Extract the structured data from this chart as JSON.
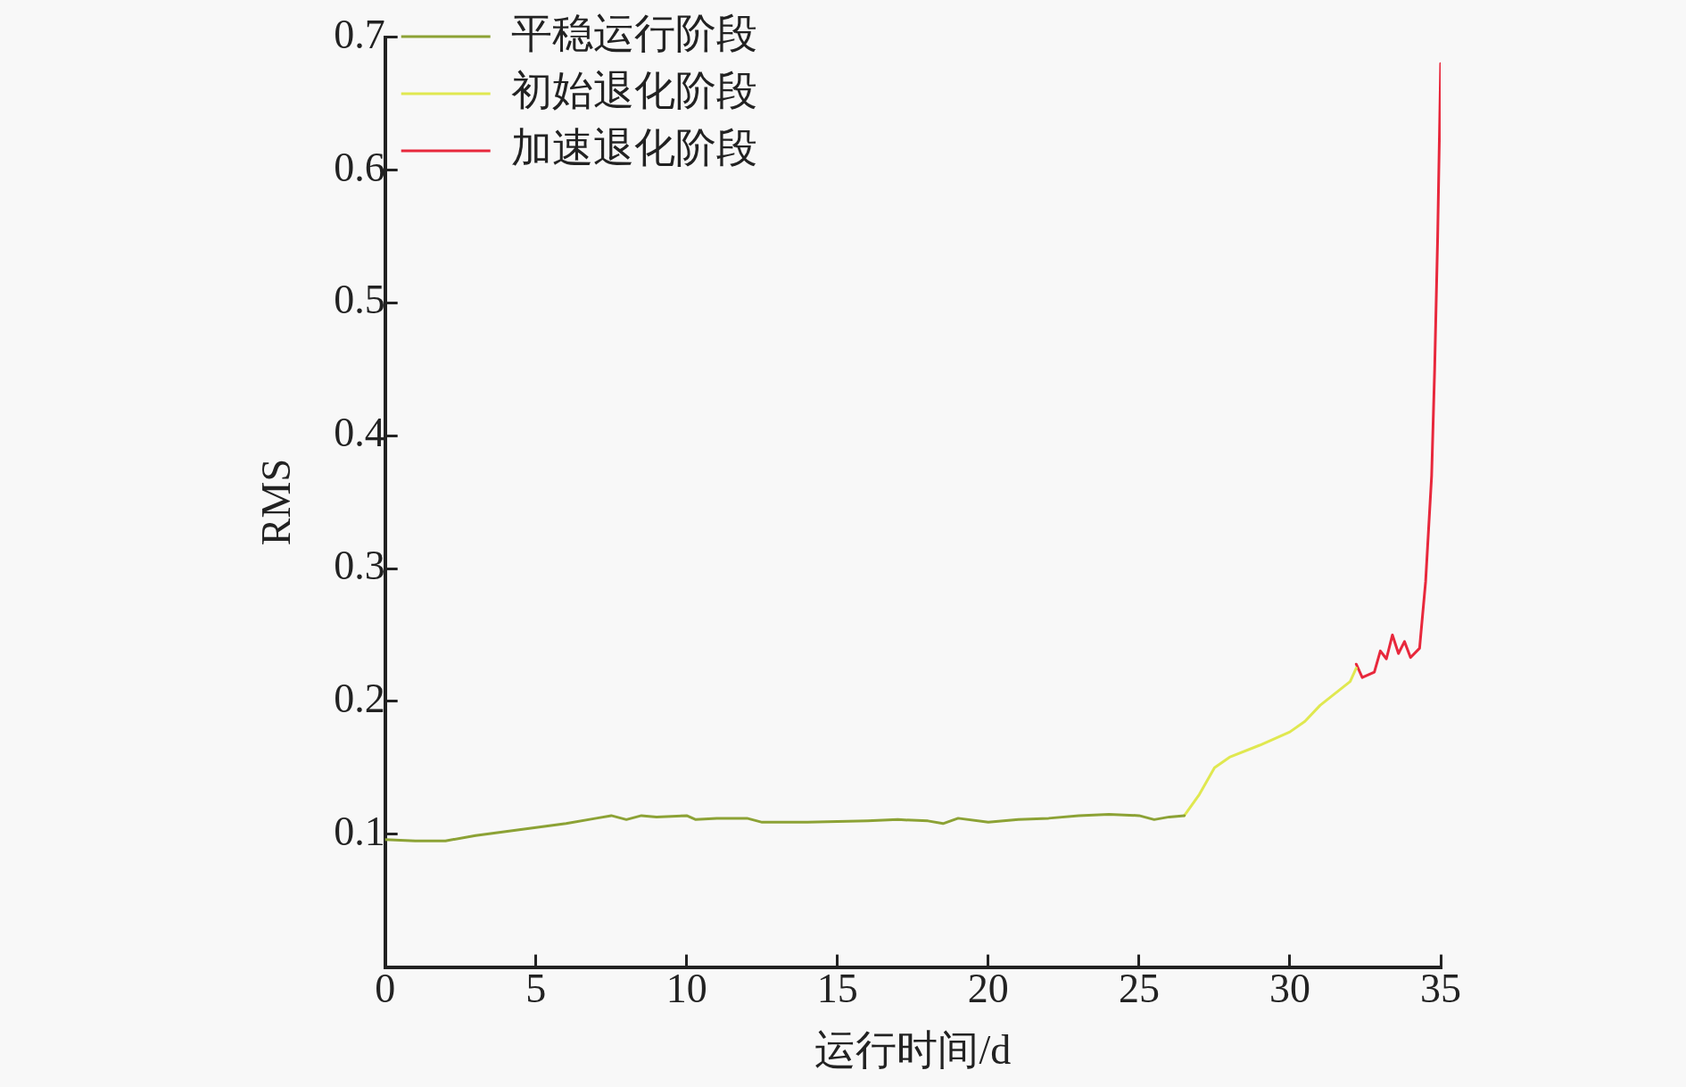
{
  "chart_data": {
    "type": "line",
    "xlabel": "运行时间/d",
    "ylabel": "RMS",
    "xlim": [
      0,
      35
    ],
    "xticks": [
      0,
      5,
      10,
      15,
      20,
      25,
      30,
      35
    ],
    "ylim": [
      0,
      0.7
    ],
    "yticks": [
      0.1,
      0.2,
      0.3,
      0.4,
      0.5,
      0.6,
      0.7
    ],
    "grid": false,
    "legend": "top left",
    "marker": "none",
    "line_style": "solid",
    "series": [
      {
        "name": "平稳运行阶段",
        "color": "#8ca235",
        "x": [
          0,
          1,
          2,
          3,
          4,
          5,
          6,
          7,
          7.5,
          8,
          8.5,
          9,
          10,
          10.3,
          11,
          12,
          12.5,
          14,
          16,
          17,
          18,
          18.5,
          19,
          20,
          21,
          22,
          23,
          24,
          25,
          25.5,
          26,
          26.5
        ],
        "values": [
          0.096,
          0.095,
          0.095,
          0.099,
          0.102,
          0.105,
          0.108,
          0.112,
          0.114,
          0.111,
          0.114,
          0.113,
          0.114,
          0.111,
          0.112,
          0.112,
          0.109,
          0.109,
          0.11,
          0.111,
          0.11,
          0.108,
          0.112,
          0.109,
          0.111,
          0.112,
          0.114,
          0.115,
          0.114,
          0.111,
          0.113,
          0.114
        ]
      },
      {
        "name": "初始退化阶段",
        "color": "#e0e850",
        "x": [
          26.5,
          27,
          27.5,
          28,
          29,
          30,
          30.5,
          31,
          32,
          32.2
        ],
        "values": [
          0.114,
          0.13,
          0.15,
          0.158,
          0.167,
          0.177,
          0.185,
          0.197,
          0.215,
          0.225
        ]
      },
      {
        "name": "加速退化阶段",
        "color": "#e8283c",
        "x": [
          32.2,
          32.4,
          32.8,
          33,
          33.2,
          33.4,
          33.6,
          33.8,
          34,
          34.3,
          34.5,
          34.7,
          34.8,
          34.9,
          35
        ],
        "values": [
          0.228,
          0.218,
          0.222,
          0.238,
          0.232,
          0.25,
          0.236,
          0.245,
          0.233,
          0.24,
          0.29,
          0.37,
          0.45,
          0.55,
          0.68
        ]
      }
    ]
  }
}
